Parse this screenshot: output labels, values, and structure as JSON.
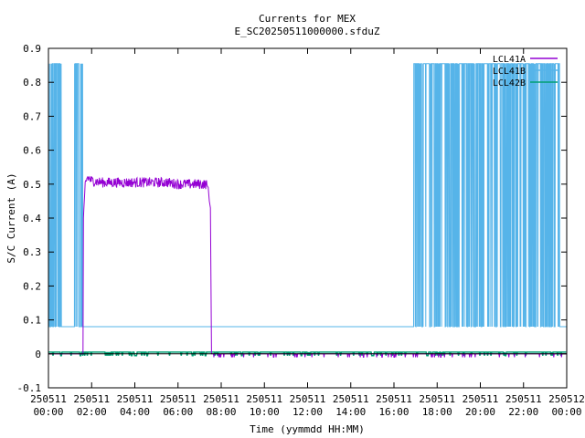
{
  "chart_data": {
    "type": "line",
    "title": "Currents for MEX",
    "subtitle": "E_SC20250511000000.sfduZ",
    "xlabel": "Time (yymmdd HH:MM)",
    "ylabel": "S/C Current (A)",
    "xlim": [
      0,
      24
    ],
    "ylim": [
      -0.1,
      0.9
    ],
    "grid": false,
    "legend_position": "top-right",
    "x_ticks": [
      {
        "value": 0,
        "line1": "250511",
        "line2": "00:00"
      },
      {
        "value": 2,
        "line1": "250511",
        "line2": "02:00"
      },
      {
        "value": 4,
        "line1": "250511",
        "line2": "04:00"
      },
      {
        "value": 6,
        "line1": "250511",
        "line2": "06:00"
      },
      {
        "value": 8,
        "line1": "250511",
        "line2": "08:00"
      },
      {
        "value": 10,
        "line1": "250511",
        "line2": "10:00"
      },
      {
        "value": 12,
        "line1": "250511",
        "line2": "12:00"
      },
      {
        "value": 14,
        "line1": "250511",
        "line2": "14:00"
      },
      {
        "value": 16,
        "line1": "250511",
        "line2": "16:00"
      },
      {
        "value": 18,
        "line1": "250511",
        "line2": "18:00"
      },
      {
        "value": 20,
        "line1": "250511",
        "line2": "20:00"
      },
      {
        "value": 22,
        "line1": "250511",
        "line2": "22:00"
      },
      {
        "value": 24,
        "line1": "250512",
        "line2": "00:00"
      }
    ],
    "y_ticks": [
      {
        "value": -0.1,
        "label": "-0.1"
      },
      {
        "value": 0,
        "label": "0"
      },
      {
        "value": 0.1,
        "label": "0.1"
      },
      {
        "value": 0.2,
        "label": "0.2"
      },
      {
        "value": 0.3,
        "label": "0.3"
      },
      {
        "value": 0.4,
        "label": "0.4"
      },
      {
        "value": 0.5,
        "label": "0.5"
      },
      {
        "value": 0.6,
        "label": "0.6"
      },
      {
        "value": 0.7,
        "label": "0.7"
      },
      {
        "value": 0.8,
        "label": "0.8"
      },
      {
        "value": 0.9,
        "label": "0.9"
      }
    ],
    "series": [
      {
        "name": "LCL41A",
        "color": "#9400d3",
        "x": [
          0,
          1.6,
          1.62,
          1.7,
          1.8,
          2.0,
          2.5,
          3.0,
          3.5,
          4.0,
          4.5,
          5.0,
          5.5,
          6.0,
          6.5,
          7.0,
          7.3,
          7.4,
          7.45,
          7.5,
          7.55,
          7.6,
          8.0,
          12.0,
          16.0,
          20.0,
          24.0
        ],
        "y": [
          0.0,
          0.0,
          0.4,
          0.5,
          0.52,
          0.51,
          0.505,
          0.505,
          0.505,
          0.505,
          0.505,
          0.505,
          0.505,
          0.5,
          0.5,
          0.5,
          0.5,
          0.49,
          0.45,
          0.43,
          0.0,
          0.0,
          0.0,
          0.0,
          0.0,
          0.0,
          0.0
        ],
        "noise_x_range": [
          1.7,
          7.35
        ],
        "noise_amplitude": 0.015
      },
      {
        "name": "LCL41B",
        "color": "#56b4e9",
        "base": 0.08,
        "high": 0.855,
        "x_range": [
          0,
          24
        ],
        "spike_intervals": [
          [
            0,
            0.6
          ],
          [
            1.2,
            1.6
          ],
          [
            16.9,
            23.7
          ]
        ],
        "spike_density": [
          0.55,
          0.45,
          0.7
        ]
      },
      {
        "name": "LCL42B",
        "color": "#009e73",
        "x": [
          0,
          24
        ],
        "y": [
          0.005,
          0.005
        ]
      }
    ]
  }
}
